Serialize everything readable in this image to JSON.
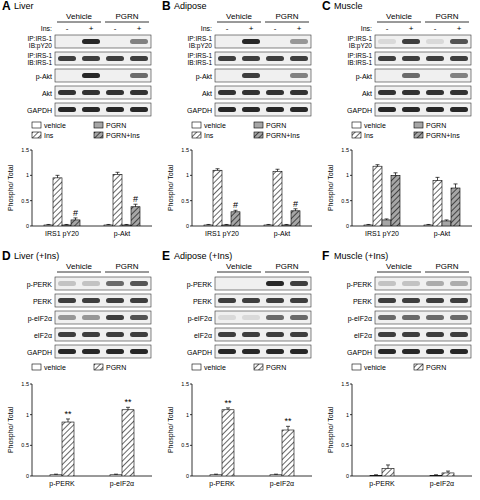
{
  "chart_data": [
    {
      "type": "bar",
      "panel_label": "A",
      "title": "Liver",
      "blot": {
        "treatment_label": "Ins:",
        "lanes": [
          "-",
          "+",
          "-",
          "+"
        ],
        "groups": [
          {
            "label": "Vehicle",
            "lanes": 2
          },
          {
            "label": "PGRN",
            "lanes": 2
          }
        ],
        "rows": [
          {
            "label": [
              "IP:IRS-1",
              "IB:pY20"
            ],
            "bands": [
              0,
              0.9,
              0,
              0.5
            ]
          },
          {
            "label": [
              "IP:IRS-1",
              "IB:IRS-1"
            ],
            "bands": [
              0.8,
              0.8,
              0.8,
              0.8
            ]
          },
          {
            "label": "p-Akt",
            "bands": [
              0,
              0.9,
              0,
              0.6
            ]
          },
          {
            "label": "Akt",
            "bands": [
              0.85,
              0.85,
              0.85,
              0.85
            ]
          },
          {
            "label": "GAPDH",
            "bands": [
              0.9,
              0.9,
              0.9,
              0.9
            ]
          }
        ]
      },
      "y_label": "Phospho/ Total",
      "categories": [
        "IRS1 pY20",
        "p-Akt"
      ],
      "ylim": [
        0,
        1.5
      ],
      "yticks": [
        0,
        0.5,
        1,
        1.5
      ],
      "legend": "top",
      "series": [
        {
          "name": "vehicle",
          "color": "#ffffff",
          "values": [
            0.02,
            0.02
          ],
          "errors": [
            0.01,
            0.01
          ]
        },
        {
          "name": "Ins",
          "color": "#ffffff",
          "values": [
            0.95,
            1.02
          ],
          "errors": [
            0.05,
            0.04
          ]
        },
        {
          "name": "PGRN",
          "color": "#a6a6a6",
          "values": [
            0.02,
            0.02
          ],
          "errors": [
            0.01,
            0.01
          ]
        },
        {
          "name": "PGRN+Ins",
          "color": "#a6a6a6",
          "values": [
            0.12,
            0.38
          ],
          "errors": [
            0.04,
            0.05
          ],
          "annotations": [
            "#",
            "#"
          ]
        }
      ]
    },
    {
      "type": "bar",
      "panel_label": "B",
      "title": "Adipose",
      "blot": {
        "treatment_label": "Ins:",
        "lanes": [
          "-",
          "+",
          "-",
          "+"
        ],
        "groups": [
          {
            "label": "Vehicle",
            "lanes": 2
          },
          {
            "label": "PGRN",
            "lanes": 2
          }
        ],
        "rows": [
          {
            "label": [
              "IP:IRS-1",
              "IB:pY20"
            ],
            "bands": [
              0,
              0.9,
              0,
              0.4
            ]
          },
          {
            "label": [
              "IP:IRS-1",
              "IB:IRS-1"
            ],
            "bands": [
              0.8,
              0.8,
              0.8,
              0.8
            ]
          },
          {
            "label": "p-Akt",
            "bands": [
              0,
              0.8,
              0,
              0.5
            ]
          },
          {
            "label": "Akt",
            "bands": [
              0.85,
              0.85,
              0.85,
              0.85
            ]
          },
          {
            "label": "GAPDH",
            "bands": [
              0.9,
              0.9,
              0.9,
              0.9
            ]
          }
        ]
      },
      "y_label": "Phospho/ Total",
      "categories": [
        "IRS1 pY20",
        "p-Akt"
      ],
      "ylim": [
        0,
        1.5
      ],
      "yticks": [
        0,
        0.5,
        1,
        1.5
      ],
      "legend": "top",
      "series": [
        {
          "name": "vehicle",
          "color": "#ffffff",
          "values": [
            0.02,
            0.02
          ],
          "errors": [
            0.01,
            0.01
          ]
        },
        {
          "name": "Ins",
          "color": "#ffffff",
          "values": [
            1.1,
            1.08
          ],
          "errors": [
            0.03,
            0.04
          ]
        },
        {
          "name": "PGRN",
          "color": "#a6a6a6",
          "values": [
            0.02,
            0.02
          ],
          "errors": [
            0.01,
            0.01
          ]
        },
        {
          "name": "PGRN+Ins",
          "color": "#a6a6a6",
          "values": [
            0.28,
            0.3
          ],
          "errors": [
            0.03,
            0.04
          ],
          "annotations": [
            "#",
            "#"
          ]
        }
      ]
    },
    {
      "type": "bar",
      "panel_label": "C",
      "title": "Muscle",
      "blot": {
        "treatment_label": "Ins:",
        "lanes": [
          "-",
          "+",
          "-",
          "+"
        ],
        "groups": [
          {
            "label": "Vehicle",
            "lanes": 2
          },
          {
            "label": "PGRN",
            "lanes": 2
          }
        ],
        "rows": [
          {
            "label": [
              "IP:IRS-1",
              "IB:pY20"
            ],
            "bands": [
              0.1,
              0.8,
              0.1,
              0.7
            ]
          },
          {
            "label": [
              "IP:IRS-1",
              "IB:IRS-1"
            ],
            "bands": [
              0.8,
              0.8,
              0.8,
              0.8
            ]
          },
          {
            "label": "p-Akt",
            "bands": [
              0,
              0.6,
              0,
              0.5
            ]
          },
          {
            "label": "Akt",
            "bands": [
              0.85,
              0.85,
              0.85,
              0.85
            ]
          },
          {
            "label": "GAPDH",
            "bands": [
              0.9,
              0.9,
              0.9,
              0.9
            ]
          }
        ]
      },
      "y_label": "Phospho/ Total",
      "categories": [
        "IRS1 pY20",
        "p-Akt"
      ],
      "ylim": [
        0,
        1.5
      ],
      "yticks": [
        0,
        0.5,
        1,
        1.5
      ],
      "legend": "top",
      "series": [
        {
          "name": "vehicle",
          "color": "#ffffff",
          "values": [
            0.02,
            0.02
          ],
          "errors": [
            0.01,
            0.01
          ]
        },
        {
          "name": "Ins",
          "color": "#ffffff",
          "values": [
            1.18,
            0.9
          ],
          "errors": [
            0.03,
            0.06
          ]
        },
        {
          "name": "PGRN",
          "color": "#a6a6a6",
          "values": [
            0.12,
            0.1
          ],
          "errors": [
            0.02,
            0.02
          ]
        },
        {
          "name": "PGRN+Ins",
          "color": "#a6a6a6",
          "values": [
            1.0,
            0.75
          ],
          "errors": [
            0.05,
            0.08
          ]
        }
      ]
    },
    {
      "type": "bar",
      "panel_label": "D",
      "title": "Liver (+Ins)",
      "blot": {
        "groups": [
          {
            "label": "Vehicle",
            "lanes": 2
          },
          {
            "label": "PGRN",
            "lanes": 2
          }
        ],
        "rows": [
          {
            "label": "p-PERK",
            "bands": [
              0.2,
              0.2,
              0.6,
              0.7
            ]
          },
          {
            "label": "PERK",
            "bands": [
              0.8,
              0.8,
              0.8,
              0.8
            ]
          },
          {
            "label": "p-eIF2α",
            "bands": [
              0.4,
              0.4,
              0.8,
              0.7
            ]
          },
          {
            "label": "eIF2α",
            "bands": [
              0.8,
              0.8,
              0.8,
              0.8
            ]
          },
          {
            "label": "GAPDH",
            "bands": [
              0.9,
              0.9,
              0.9,
              0.9
            ]
          }
        ]
      },
      "y_label": "Phospho/ Total",
      "categories": [
        "p-PERK",
        "p-eIF2α"
      ],
      "ylim": [
        0,
        1.5
      ],
      "yticks": [
        0,
        0.5,
        1,
        1.5
      ],
      "legend": "top",
      "series": [
        {
          "name": "vehicle",
          "color": "#ffffff",
          "values": [
            0.02,
            0.02
          ],
          "errors": [
            0.01,
            0.01
          ]
        },
        {
          "name": "PGRN",
          "color": "#ffffff",
          "values": [
            0.88,
            1.08
          ],
          "errors": [
            0.05,
            0.04
          ],
          "annotations": [
            "**",
            "**"
          ]
        }
      ]
    },
    {
      "type": "bar",
      "panel_label": "E",
      "title": "Adipose (+Ins)",
      "blot": {
        "groups": [
          {
            "label": "Vehicle",
            "lanes": 2
          },
          {
            "label": "PGRN",
            "lanes": 2
          }
        ],
        "rows": [
          {
            "label": "p-PERK",
            "bands": [
              0,
              0,
              0.9,
              0.8
            ]
          },
          {
            "label": "PERK",
            "bands": [
              0.8,
              0.8,
              0.8,
              0.8
            ]
          },
          {
            "label": "p-eIF2α",
            "bands": [
              0.1,
              0.1,
              0.6,
              0.6
            ]
          },
          {
            "label": "eIF2α",
            "bands": [
              0.8,
              0.8,
              0.8,
              0.8
            ]
          },
          {
            "label": "GAPDH",
            "bands": [
              0.9,
              0.9,
              0.9,
              0.9
            ]
          }
        ]
      },
      "y_label": "Phospho/ Total",
      "categories": [
        "p-PERK",
        "p-eIF2α"
      ],
      "ylim": [
        0,
        1.5
      ],
      "yticks": [
        0,
        0.5,
        1,
        1.5
      ],
      "legend": "top",
      "series": [
        {
          "name": "vehicle",
          "color": "#ffffff",
          "values": [
            0.02,
            0.02
          ],
          "errors": [
            0.01,
            0.01
          ]
        },
        {
          "name": "PGRN",
          "color": "#ffffff",
          "values": [
            1.08,
            0.75
          ],
          "errors": [
            0.03,
            0.06
          ],
          "annotations": [
            "**",
            "**"
          ]
        }
      ]
    },
    {
      "type": "bar",
      "panel_label": "F",
      "title": "Muscle (+Ins)",
      "blot": {
        "groups": [
          {
            "label": "Vehicle",
            "lanes": 2
          },
          {
            "label": "PGRN",
            "lanes": 2
          }
        ],
        "rows": [
          {
            "label": "p-PERK",
            "bands": [
              0.2,
              0.2,
              0.3,
              0.3
            ]
          },
          {
            "label": "PERK",
            "bands": [
              0.8,
              0.8,
              0.8,
              0.8
            ]
          },
          {
            "label": "p-eIF2α",
            "bands": [
              0.6,
              0.6,
              0.6,
              0.6
            ]
          },
          {
            "label": "eIF2α",
            "bands": [
              0.8,
              0.8,
              0.8,
              0.8
            ]
          },
          {
            "label": "GAPDH",
            "bands": [
              0.9,
              0.9,
              0.9,
              0.9
            ]
          }
        ]
      },
      "y_label": "Phospho/ Total",
      "categories": [
        "p-PERK",
        "p-eIF2α"
      ],
      "ylim": [
        0,
        1.5
      ],
      "yticks": [
        0,
        0.5,
        1,
        1.5
      ],
      "legend": "top",
      "series": [
        {
          "name": "vehicle",
          "color": "#ffffff",
          "values": [
            0.01,
            0.01
          ],
          "errors": [
            0.01,
            0.01
          ]
        },
        {
          "name": "PGRN",
          "color": "#ffffff",
          "values": [
            0.12,
            0.05
          ],
          "errors": [
            0.06,
            0.03
          ]
        }
      ]
    }
  ]
}
